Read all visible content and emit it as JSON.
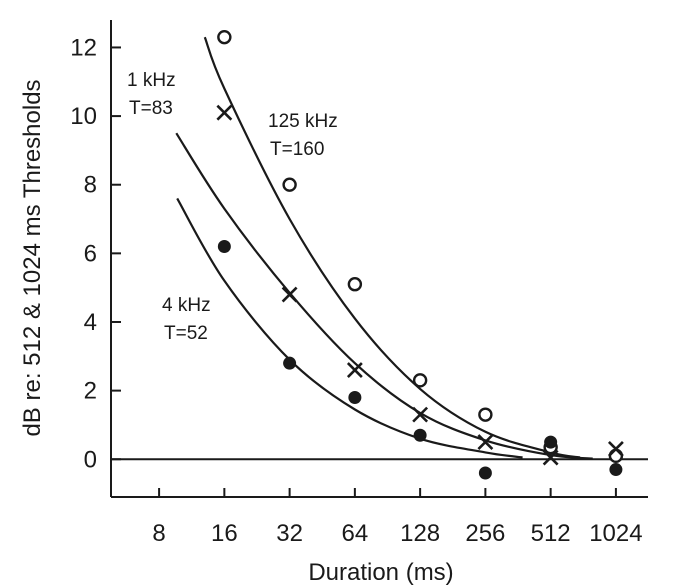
{
  "chart_data": {
    "type": "scatter",
    "xlabel": "Duration (ms)",
    "ylabel": "dB re: 512 & 1024 ms Thresholds",
    "x_scale": "log2",
    "x_ticks": [
      8,
      16,
      32,
      64,
      128,
      256,
      512,
      1024
    ],
    "y_ticks": [
      0,
      2,
      4,
      6,
      8,
      10,
      12
    ],
    "xlim": [
      4.8,
      1440
    ],
    "ylim": [
      -1.1,
      12.8
    ],
    "reference_line_y": 0,
    "series": [
      {
        "name": "125 kHz",
        "marker": "open-circle",
        "points": [
          [
            16,
            12.3
          ],
          [
            32,
            8.0
          ],
          [
            64,
            5.1
          ],
          [
            128,
            2.3
          ],
          [
            256,
            1.3
          ],
          [
            512,
            0.35
          ],
          [
            1024,
            0.1
          ]
        ],
        "fit": [
          [
            13,
            12.3
          ],
          [
            16,
            10.8
          ],
          [
            32,
            7.0
          ],
          [
            64,
            4.1
          ],
          [
            128,
            2.05
          ],
          [
            256,
            0.8
          ],
          [
            512,
            0.2
          ],
          [
            700,
            0.05
          ]
        ]
      },
      {
        "name": "1 kHz",
        "marker": "x",
        "points": [
          [
            16,
            10.1
          ],
          [
            32,
            4.8
          ],
          [
            64,
            2.6
          ],
          [
            128,
            1.3
          ],
          [
            256,
            0.5
          ],
          [
            512,
            0.05
          ],
          [
            1024,
            0.3
          ]
        ],
        "fit": [
          [
            9.6,
            9.5
          ],
          [
            16,
            7.3
          ],
          [
            32,
            4.85
          ],
          [
            64,
            2.8
          ],
          [
            128,
            1.35
          ],
          [
            256,
            0.55
          ],
          [
            512,
            0.12
          ],
          [
            800,
            0.02
          ]
        ]
      },
      {
        "name": "4 kHz",
        "marker": "filled-circle",
        "points": [
          [
            16,
            6.2
          ],
          [
            32,
            2.8
          ],
          [
            64,
            1.8
          ],
          [
            128,
            0.7
          ],
          [
            256,
            -0.4
          ],
          [
            512,
            0.5
          ],
          [
            1024,
            -0.3
          ]
        ],
        "fit": [
          [
            9.7,
            7.6
          ],
          [
            16,
            5.2
          ],
          [
            32,
            2.9
          ],
          [
            64,
            1.45
          ],
          [
            128,
            0.6
          ],
          [
            256,
            0.2
          ],
          [
            380,
            0.05
          ]
        ]
      }
    ],
    "annotations": [
      {
        "lines": [
          "1 kHz",
          "T=83"
        ]
      },
      {
        "lines": [
          "125 kHz",
          "T=160"
        ]
      },
      {
        "lines": [
          "4 kHz",
          "T=52"
        ]
      }
    ]
  }
}
